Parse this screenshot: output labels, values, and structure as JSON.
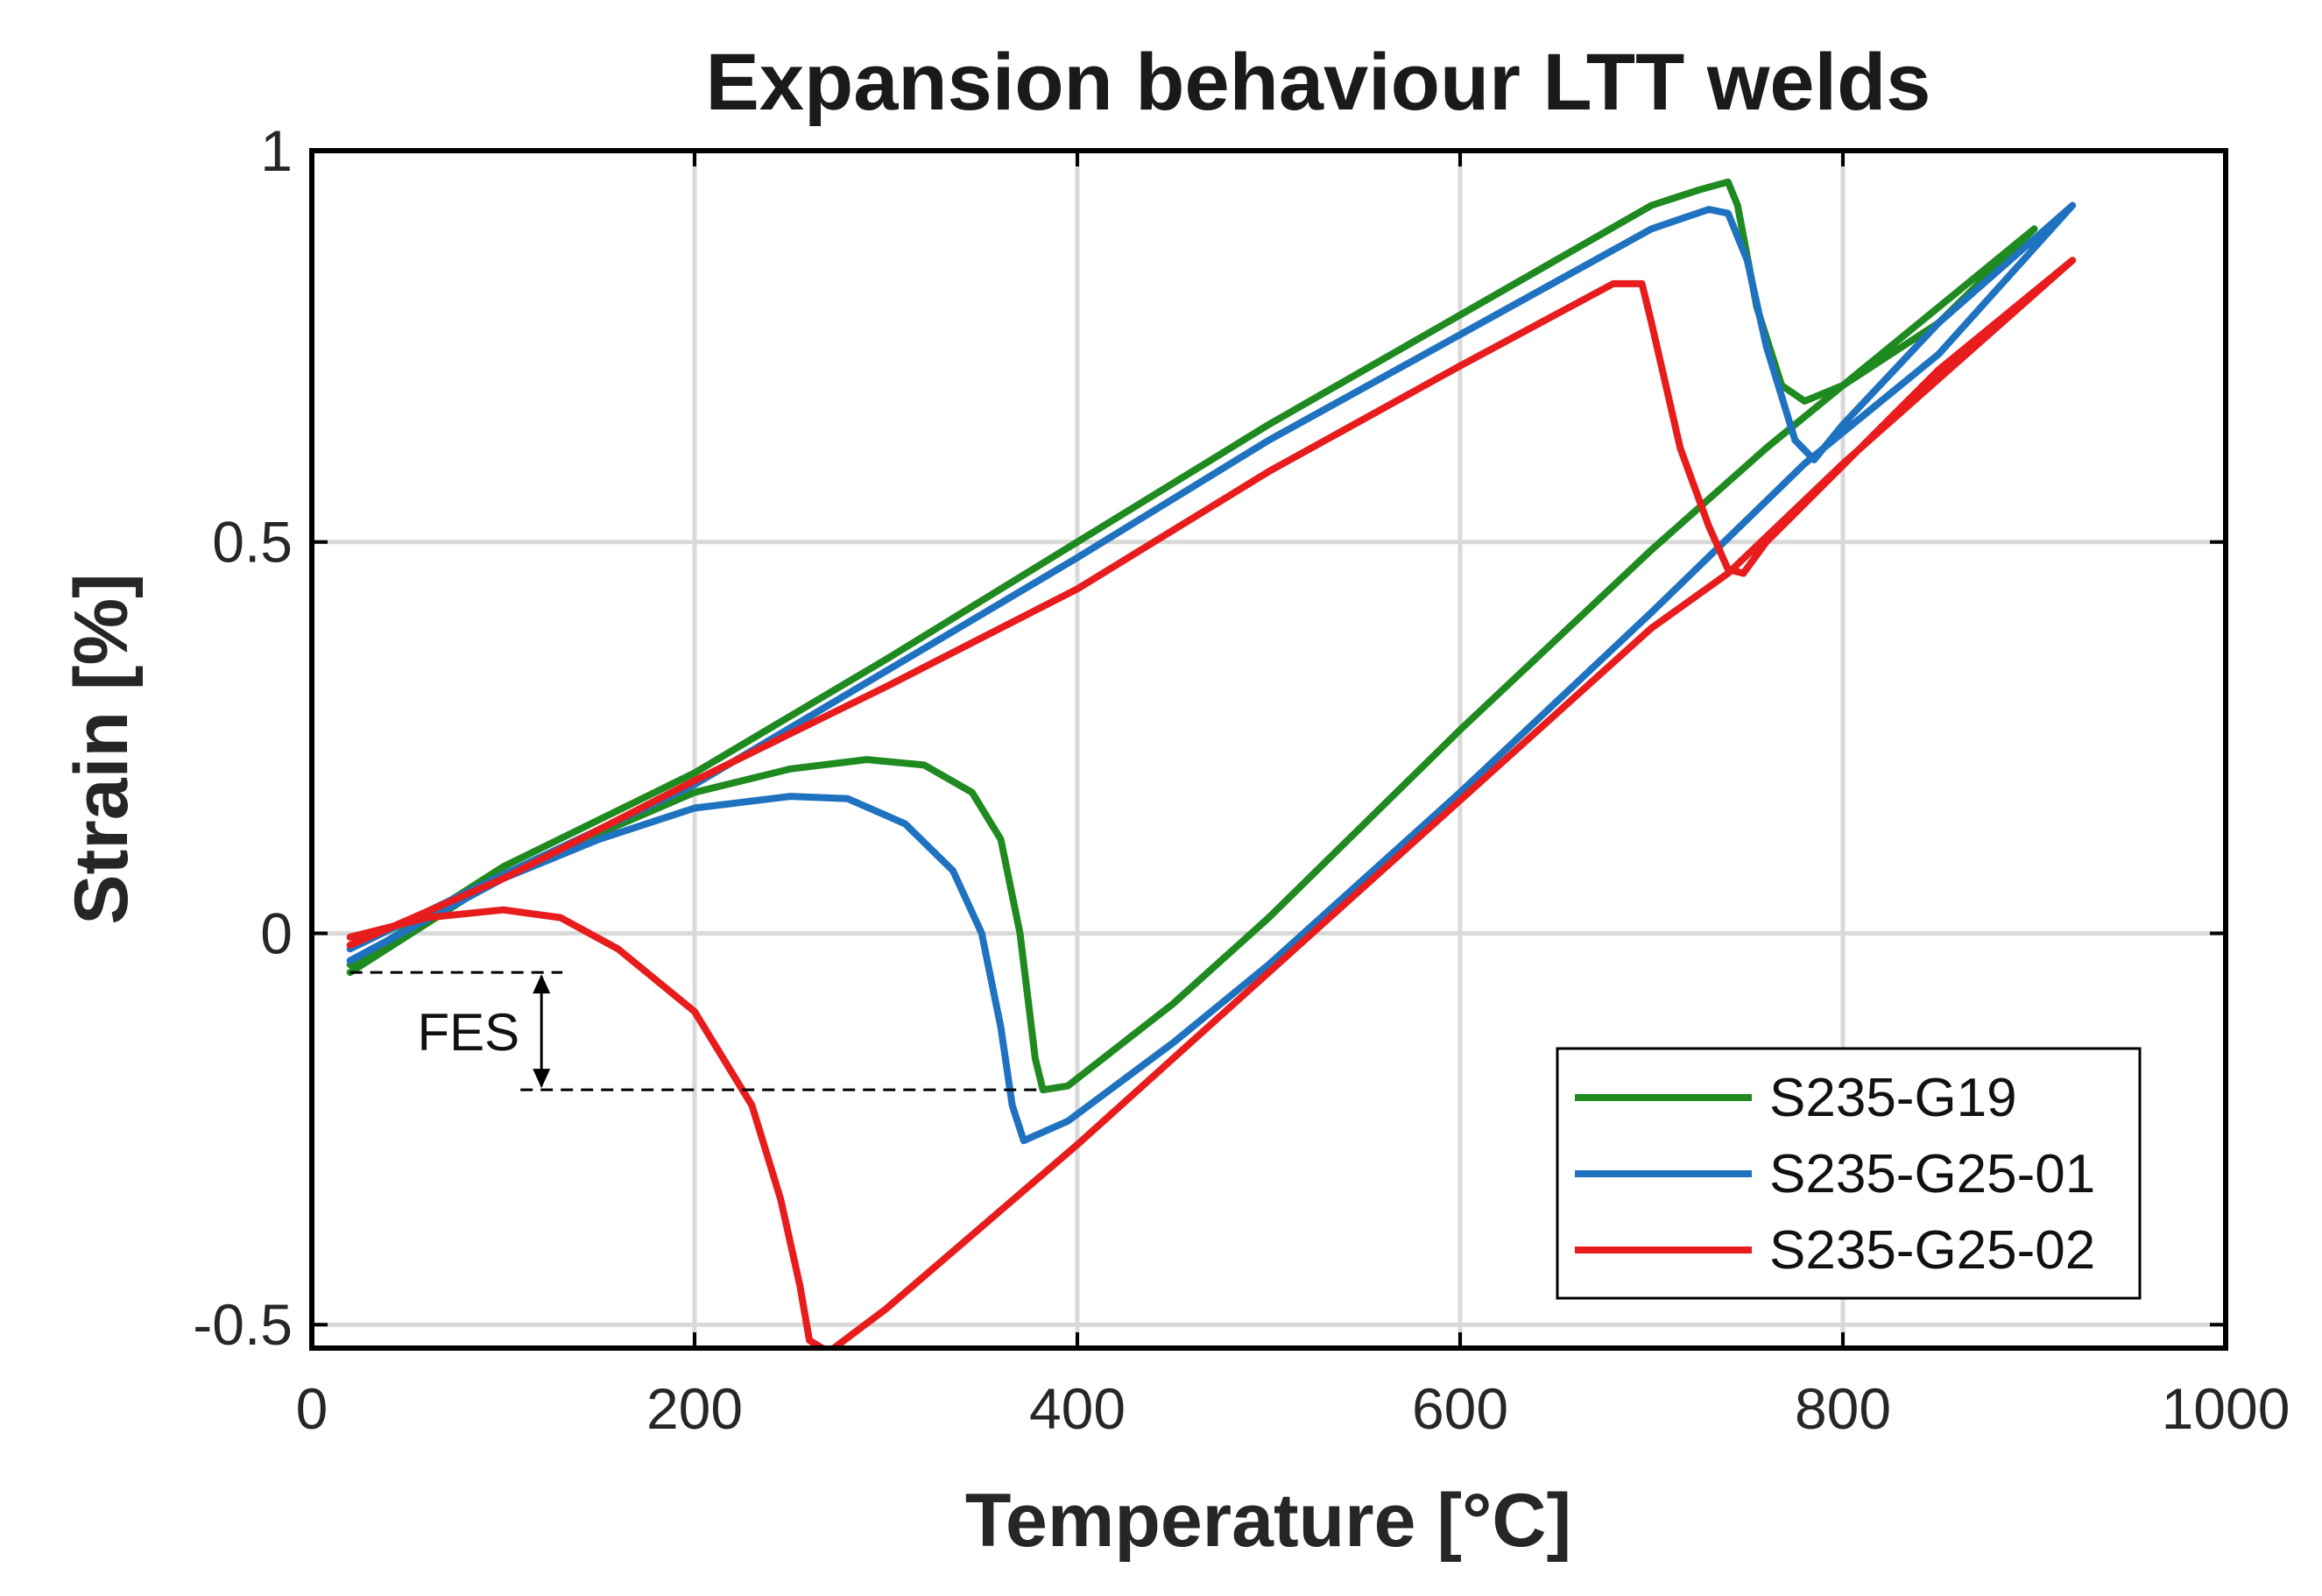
{
  "chart_data": {
    "type": "line",
    "title": "Expansion behaviour LTT welds",
    "xlabel": "Temperature [°C]",
    "ylabel": "Strain [%]",
    "xlim": [
      0,
      1000
    ],
    "ylim": [
      -0.53,
      1.0
    ],
    "xticks": [
      0,
      200,
      400,
      600,
      800,
      1000
    ],
    "xtick_labels": [
      "0",
      "200",
      "400",
      "600",
      "800",
      "1000"
    ],
    "yticks": [
      -0.5,
      0,
      0.5,
      1
    ],
    "ytick_labels": [
      "-0.5",
      "0",
      "0.5",
      "1"
    ],
    "grid": true,
    "legend_position": "bottom-right",
    "annotation": {
      "label": "FES",
      "upper_strain": -0.05,
      "lower_strain": -0.2,
      "x_start": 20,
      "x_end": 380,
      "arrow_x": 120
    },
    "series": [
      {
        "name": "S235-G19",
        "color": "#1f8a1f",
        "points": [
          [
            20,
            -0.05
          ],
          [
            100,
            0.075
          ],
          [
            200,
            0.18
          ],
          [
            250,
            0.21
          ],
          [
            290,
            0.222
          ],
          [
            320,
            0.215
          ],
          [
            345,
            0.18
          ],
          [
            360,
            0.12
          ],
          [
            370,
            0.0
          ],
          [
            375,
            -0.1
          ],
          [
            378,
            -0.16
          ],
          [
            382,
            -0.2
          ],
          [
            395,
            -0.195
          ],
          [
            450,
            -0.09
          ],
          [
            500,
            0.02
          ],
          [
            600,
            0.26
          ],
          [
            700,
            0.49
          ],
          [
            760,
            0.62
          ],
          [
            800,
            0.7
          ],
          [
            850,
            0.78
          ],
          [
            900,
            0.9
          ],
          [
            880,
            0.86
          ],
          [
            800,
            0.7
          ],
          [
            780,
            0.68
          ],
          [
            768,
            0.7
          ],
          [
            755,
            0.8
          ],
          [
            745,
            0.93
          ],
          [
            740,
            0.96
          ],
          [
            725,
            0.95
          ],
          [
            700,
            0.93
          ],
          [
            600,
            0.79
          ],
          [
            500,
            0.65
          ],
          [
            400,
            0.5
          ],
          [
            300,
            0.35
          ],
          [
            200,
            0.205
          ],
          [
            100,
            0.085
          ],
          [
            20,
            -0.04
          ]
        ]
      },
      {
        "name": "S235-G25-01",
        "color": "#1f72c0",
        "points": [
          [
            20,
            -0.035
          ],
          [
            100,
            0.07
          ],
          [
            150,
            0.12
          ],
          [
            200,
            0.16
          ],
          [
            250,
            0.175
          ],
          [
            280,
            0.172
          ],
          [
            310,
            0.14
          ],
          [
            335,
            0.08
          ],
          [
            350,
            0.0
          ],
          [
            360,
            -0.12
          ],
          [
            366,
            -0.22
          ],
          [
            372,
            -0.265
          ],
          [
            395,
            -0.24
          ],
          [
            450,
            -0.14
          ],
          [
            500,
            -0.04
          ],
          [
            600,
            0.18
          ],
          [
            700,
            0.41
          ],
          [
            780,
            0.6
          ],
          [
            800,
            0.64
          ],
          [
            850,
            0.74
          ],
          [
            920,
            0.93
          ],
          [
            850,
            0.78
          ],
          [
            800,
            0.65
          ],
          [
            785,
            0.605
          ],
          [
            775,
            0.63
          ],
          [
            760,
            0.75
          ],
          [
            750,
            0.86
          ],
          [
            740,
            0.92
          ],
          [
            730,
            0.925
          ],
          [
            700,
            0.9
          ],
          [
            600,
            0.765
          ],
          [
            500,
            0.63
          ],
          [
            400,
            0.48
          ],
          [
            300,
            0.335
          ],
          [
            200,
            0.19
          ],
          [
            100,
            0.075
          ],
          [
            20,
            -0.02
          ]
        ]
      },
      {
        "name": "S235-G25-02",
        "color": "#e81c1c",
        "points": [
          [
            20,
            -0.005
          ],
          [
            60,
            0.02
          ],
          [
            100,
            0.03
          ],
          [
            130,
            0.02
          ],
          [
            160,
            -0.02
          ],
          [
            200,
            -0.1
          ],
          [
            230,
            -0.22
          ],
          [
            245,
            -0.34
          ],
          [
            255,
            -0.45
          ],
          [
            260,
            -0.52
          ],
          [
            270,
            -0.535
          ],
          [
            300,
            -0.48
          ],
          [
            400,
            -0.27
          ],
          [
            500,
            -0.05
          ],
          [
            600,
            0.17
          ],
          [
            700,
            0.39
          ],
          [
            740,
            0.46
          ],
          [
            800,
            0.6
          ],
          [
            920,
            0.86
          ],
          [
            850,
            0.72
          ],
          [
            760,
            0.5
          ],
          [
            748,
            0.46
          ],
          [
            740,
            0.465
          ],
          [
            730,
            0.52
          ],
          [
            715,
            0.62
          ],
          [
            700,
            0.78
          ],
          [
            695,
            0.83
          ],
          [
            680,
            0.83
          ],
          [
            600,
            0.725
          ],
          [
            500,
            0.59
          ],
          [
            400,
            0.44
          ],
          [
            300,
            0.315
          ],
          [
            200,
            0.195
          ],
          [
            100,
            0.07
          ],
          [
            20,
            -0.015
          ]
        ]
      }
    ]
  }
}
